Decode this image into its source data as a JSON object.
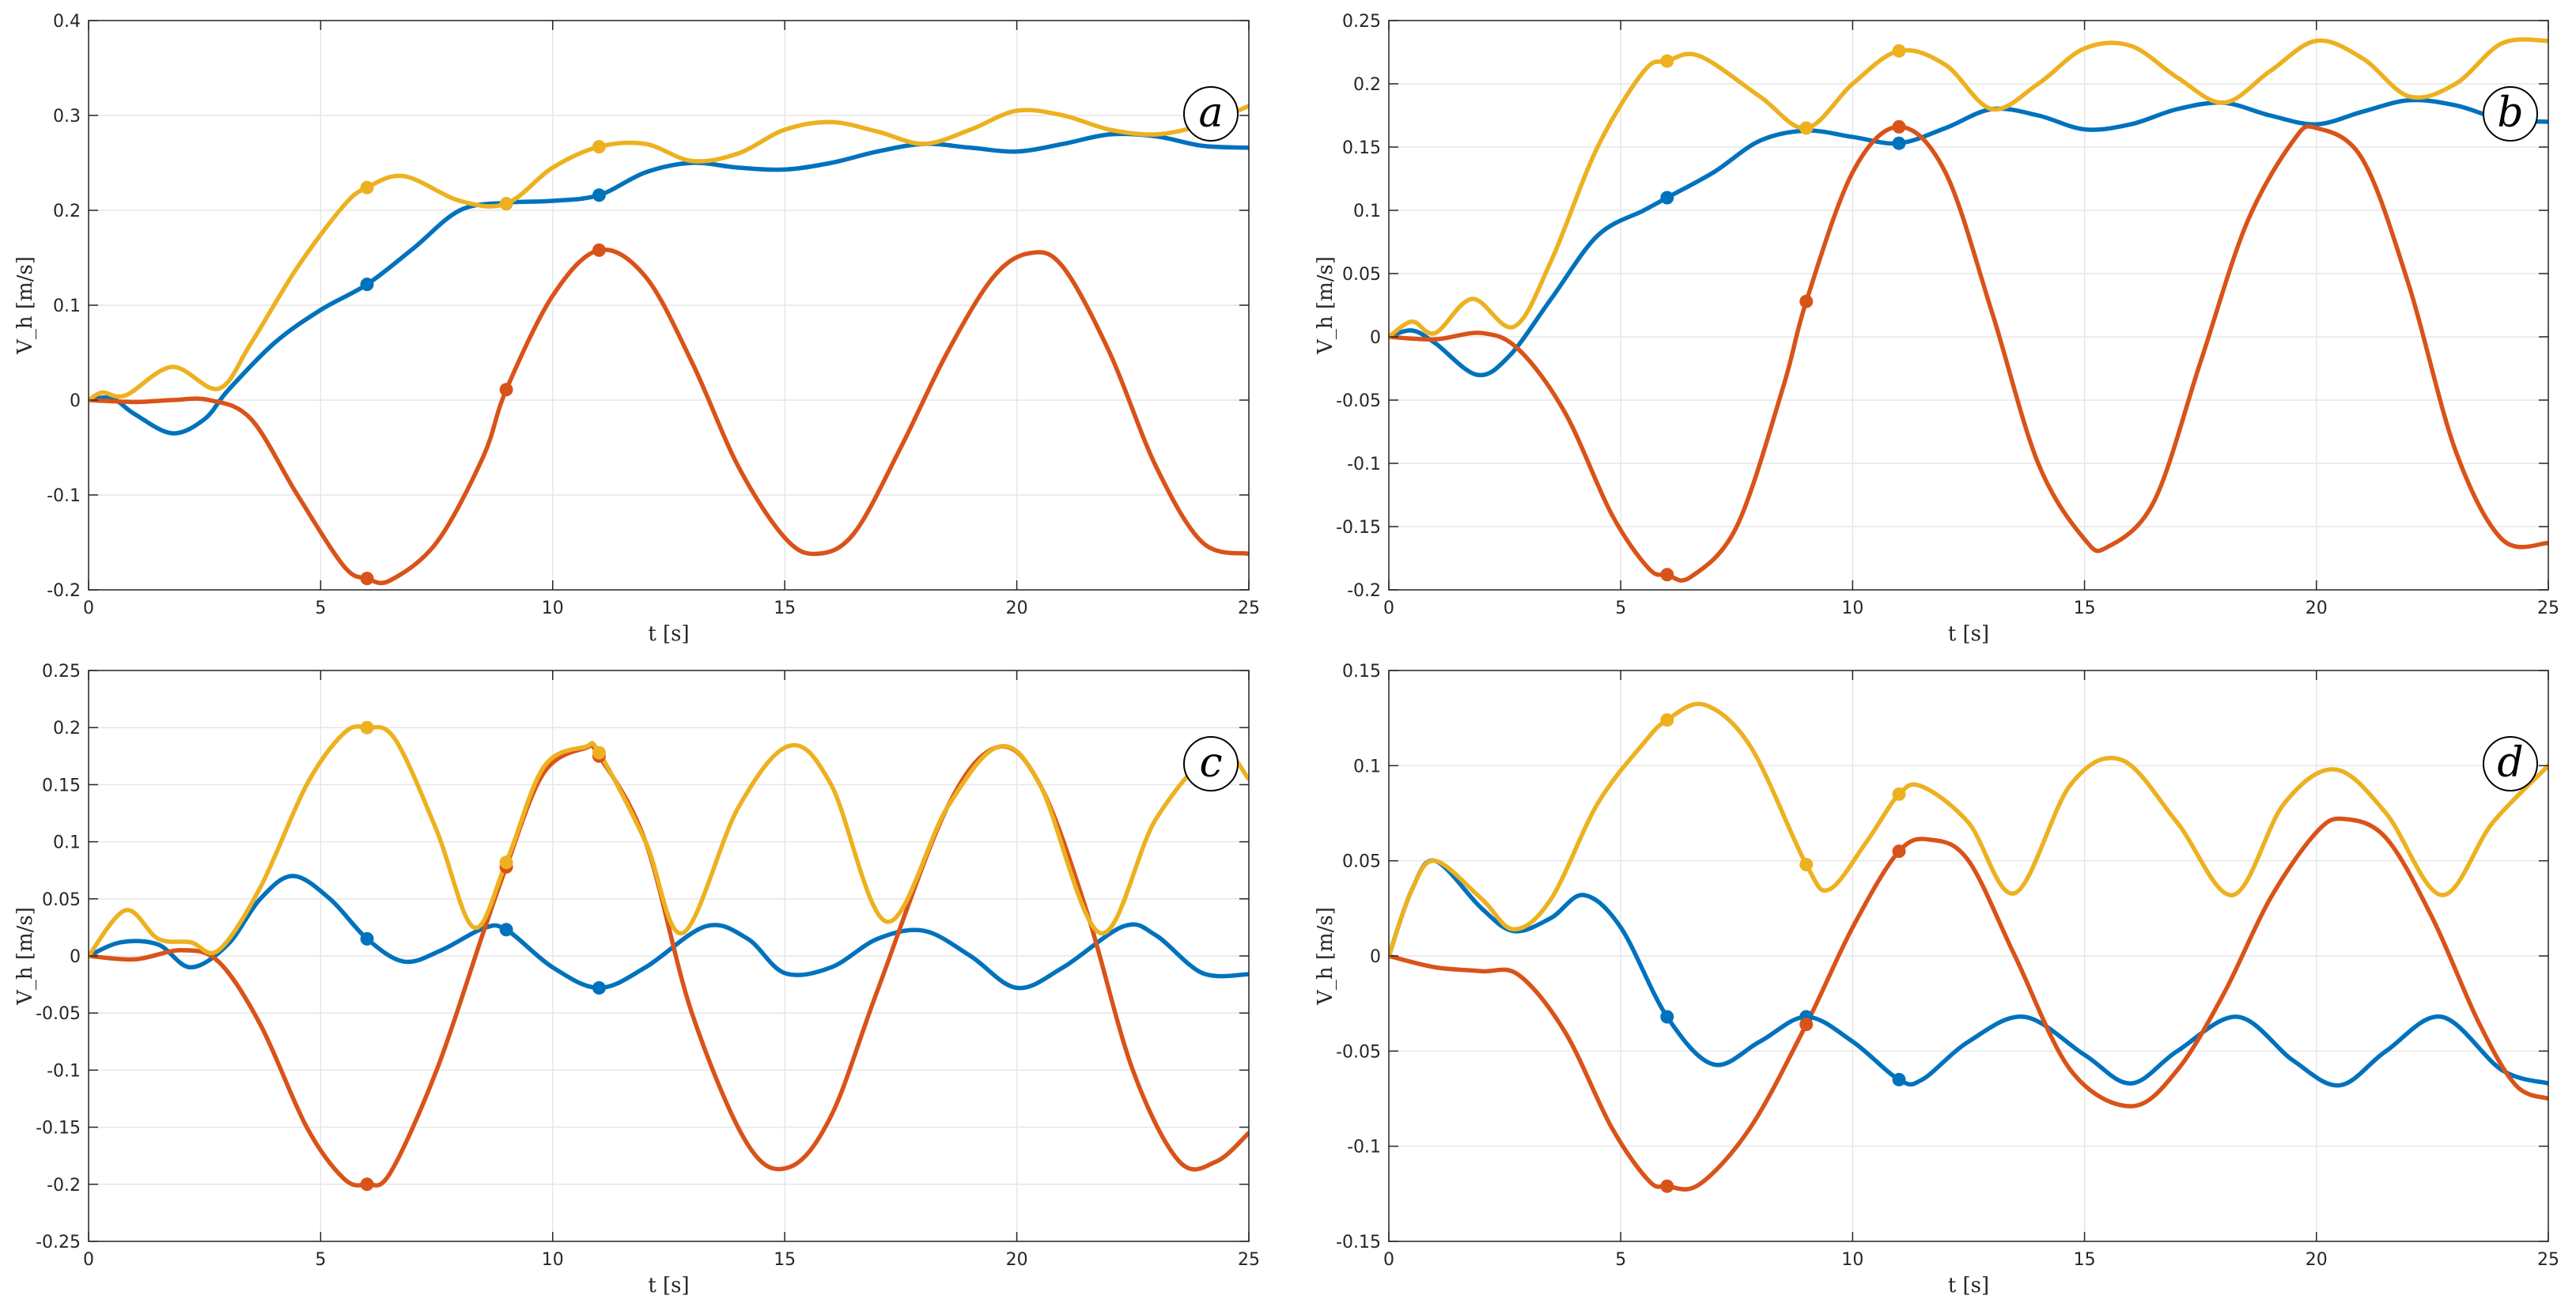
{
  "figure": {
    "colors": {
      "blue": "#0072BD",
      "orange": "#D95319",
      "yellow": "#EDB120",
      "grid": "#e6e6e6",
      "axis": "#262626"
    }
  },
  "chart_data": [
    {
      "type": "line",
      "panel": "a",
      "xlabel": "t [s]",
      "ylabel": "V_h [m/s]",
      "xlim": [
        0,
        25
      ],
      "ylim": [
        -0.2,
        0.4
      ],
      "xticks": [
        0,
        5,
        10,
        15,
        20,
        25
      ],
      "yticks": [
        -0.2,
        -0.1,
        0,
        0.1,
        0.2,
        0.3,
        0.4
      ],
      "grid": true,
      "series": [
        {
          "name": "blue",
          "color": "#0072BD",
          "x": [
            0,
            0.5,
            1,
            1.8,
            2.5,
            3,
            4,
            5,
            6,
            7,
            8,
            9,
            10,
            11,
            12,
            13,
            14,
            15,
            16,
            17,
            18,
            19,
            20,
            21,
            22,
            23,
            24,
            25
          ],
          "y": [
            0,
            0.002,
            -0.015,
            -0.035,
            -0.02,
            0.01,
            0.06,
            0.095,
            0.122,
            0.16,
            0.2,
            0.208,
            0.21,
            0.216,
            0.24,
            0.25,
            0.245,
            0.243,
            0.25,
            0.262,
            0.27,
            0.266,
            0.262,
            0.27,
            0.28,
            0.278,
            0.268,
            0.266
          ],
          "markers": [
            [
              6,
              0.122
            ],
            [
              11,
              0.216
            ]
          ]
        },
        {
          "name": "orange",
          "color": "#D95319",
          "x": [
            0,
            1,
            1.8,
            2.6,
            3.5,
            4.5,
            5.5,
            6,
            6.5,
            7.5,
            8.5,
            9,
            10,
            11,
            12,
            13,
            14,
            15,
            15.7,
            16.5,
            17.5,
            18.5,
            19.5,
            20.3,
            21,
            22,
            23,
            24,
            25
          ],
          "y": [
            0,
            -0.002,
            0,
            0,
            -0.02,
            -0.1,
            -0.175,
            -0.188,
            -0.19,
            -0.15,
            -0.06,
            0.011,
            0.11,
            0.158,
            0.13,
            0.04,
            -0.07,
            -0.145,
            -0.162,
            -0.14,
            -0.05,
            0.05,
            0.13,
            0.155,
            0.14,
            0.05,
            -0.07,
            -0.15,
            -0.162
          ],
          "markers": [
            [
              6,
              -0.188
            ],
            [
              9,
              0.011
            ],
            [
              11,
              0.158
            ]
          ]
        },
        {
          "name": "yellow",
          "color": "#EDB120",
          "x": [
            0,
            0.3,
            0.8,
            1.8,
            2.8,
            3.5,
            4.5,
            5.5,
            6,
            6.8,
            8,
            9,
            10,
            11,
            12,
            13,
            14,
            15,
            16,
            17,
            18,
            19,
            20,
            21,
            22,
            23,
            24,
            25
          ],
          "y": [
            0,
            0.008,
            0.005,
            0.035,
            0.012,
            0.06,
            0.14,
            0.205,
            0.224,
            0.236,
            0.21,
            0.207,
            0.245,
            0.267,
            0.27,
            0.252,
            0.26,
            0.285,
            0.293,
            0.283,
            0.27,
            0.285,
            0.305,
            0.3,
            0.285,
            0.28,
            0.29,
            0.31
          ],
          "markers": [
            [
              6,
              0.224
            ],
            [
              9,
              0.207
            ],
            [
              11,
              0.267
            ]
          ]
        }
      ]
    },
    {
      "type": "line",
      "panel": "b",
      "xlabel": "t [s]",
      "ylabel": "V_h [m/s]",
      "xlim": [
        0,
        25
      ],
      "ylim": [
        -0.2,
        0.25
      ],
      "xticks": [
        0,
        5,
        10,
        15,
        20,
        25
      ],
      "yticks": [
        -0.2,
        -0.15,
        -0.1,
        -0.05,
        0,
        0.05,
        0.1,
        0.15,
        0.2,
        0.25
      ],
      "grid": true,
      "series": [
        {
          "name": "blue",
          "color": "#0072BD",
          "x": [
            0,
            0.5,
            1,
            1.9,
            2.6,
            3.5,
            4.5,
            5.5,
            6,
            7,
            8,
            9,
            10,
            11,
            12,
            13,
            14,
            15,
            16,
            17,
            18,
            19,
            20,
            21,
            22,
            23,
            24,
            25
          ],
          "y": [
            0,
            0.005,
            -0.005,
            -0.03,
            -0.015,
            0.03,
            0.08,
            0.1,
            0.11,
            0.13,
            0.155,
            0.163,
            0.158,
            0.153,
            0.165,
            0.18,
            0.175,
            0.164,
            0.168,
            0.18,
            0.185,
            0.175,
            0.168,
            0.178,
            0.187,
            0.183,
            0.172,
            0.17
          ],
          "markers": [
            [
              6,
              0.11
            ],
            [
              11,
              0.153
            ]
          ]
        },
        {
          "name": "orange",
          "color": "#D95319",
          "x": [
            0,
            1,
            2,
            2.8,
            3.8,
            4.8,
            5.6,
            6,
            6.5,
            7.5,
            8.5,
            9,
            10,
            11,
            12,
            13,
            14,
            15,
            15.5,
            16.5,
            17.5,
            18.5,
            19.5,
            20,
            21,
            22,
            23,
            24,
            25
          ],
          "y": [
            0,
            -0.002,
            0.003,
            -0.01,
            -0.06,
            -0.14,
            -0.183,
            -0.188,
            -0.19,
            -0.15,
            -0.04,
            0.028,
            0.13,
            0.166,
            0.13,
            0.02,
            -0.1,
            -0.16,
            -0.166,
            -0.13,
            -0.02,
            0.09,
            0.155,
            0.165,
            0.14,
            0.04,
            -0.09,
            -0.16,
            -0.163
          ],
          "markers": [
            [
              6,
              -0.188
            ],
            [
              9,
              0.028
            ],
            [
              11,
              0.166
            ]
          ]
        },
        {
          "name": "yellow",
          "color": "#EDB120",
          "x": [
            0,
            0.5,
            1,
            1.8,
            2.7,
            3.5,
            4.5,
            5.5,
            6,
            6.7,
            8,
            9,
            10,
            11,
            12,
            13,
            14,
            15,
            16,
            17,
            18,
            19,
            20,
            21,
            22,
            23,
            24,
            25
          ],
          "y": [
            0,
            0.012,
            0.003,
            0.03,
            0.008,
            0.06,
            0.15,
            0.21,
            0.218,
            0.222,
            0.19,
            0.165,
            0.2,
            0.226,
            0.215,
            0.18,
            0.2,
            0.228,
            0.23,
            0.205,
            0.185,
            0.21,
            0.234,
            0.22,
            0.19,
            0.2,
            0.232,
            0.234
          ],
          "markers": [
            [
              6,
              0.218
            ],
            [
              9,
              0.165
            ],
            [
              11,
              0.226
            ]
          ]
        }
      ]
    },
    {
      "type": "line",
      "panel": "c",
      "xlabel": "t [s]",
      "ylabel": "V_h [m/s]",
      "xlim": [
        0,
        25
      ],
      "ylim": [
        -0.25,
        0.25
      ],
      "xticks": [
        0,
        5,
        10,
        15,
        20,
        25
      ],
      "yticks": [
        -0.25,
        -0.2,
        -0.15,
        -0.1,
        -0.05,
        0,
        0.05,
        0.1,
        0.15,
        0.2,
        0.25
      ],
      "grid": true,
      "series": [
        {
          "name": "blue",
          "color": "#0072BD",
          "x": [
            0,
            0.7,
            1.5,
            2.2,
            3,
            3.7,
            4.4,
            5.2,
            6,
            6.8,
            7.6,
            8.5,
            9,
            10,
            11,
            12,
            13.3,
            14.2,
            15,
            16,
            17,
            18,
            19,
            20,
            21,
            22.3,
            23,
            24,
            25
          ],
          "y": [
            0,
            0.012,
            0.01,
            -0.01,
            0.01,
            0.05,
            0.07,
            0.05,
            0.015,
            -0.005,
            0.005,
            0.024,
            0.023,
            -0.01,
            -0.028,
            -0.01,
            0.026,
            0.015,
            -0.015,
            -0.01,
            0.015,
            0.022,
            0.0,
            -0.028,
            -0.01,
            0.026,
            0.018,
            -0.015,
            -0.016
          ],
          "markers": [
            [
              6,
              0.015
            ],
            [
              9,
              0.023
            ],
            [
              11,
              -0.028
            ]
          ]
        },
        {
          "name": "orange",
          "color": "#D95319",
          "x": [
            0,
            1,
            2,
            2.8,
            3.7,
            4.7,
            5.5,
            6,
            6.5,
            7.5,
            8.5,
            9,
            9.8,
            10.7,
            11,
            12,
            13,
            14.2,
            15.1,
            16,
            17,
            18.5,
            19.6,
            20.5,
            21.5,
            22.5,
            23.5,
            24.3,
            25
          ],
          "y": [
            0,
            -0.003,
            0.005,
            -0.005,
            -0.06,
            -0.15,
            -0.195,
            -0.2,
            -0.19,
            -0.1,
            0.02,
            0.078,
            0.16,
            0.182,
            0.175,
            0.1,
            -0.05,
            -0.165,
            -0.185,
            -0.14,
            -0.03,
            0.13,
            0.183,
            0.15,
            0.04,
            -0.1,
            -0.18,
            -0.18,
            -0.155
          ],
          "markers": [
            [
              6,
              -0.2
            ],
            [
              9,
              0.078
            ],
            [
              11,
              0.175
            ]
          ]
        },
        {
          "name": "yellow",
          "color": "#EDB120",
          "x": [
            0,
            0.8,
            1.5,
            2.2,
            2.8,
            3.7,
            4.7,
            5.5,
            6,
            6.6,
            7.5,
            8.3,
            9,
            9.8,
            10.7,
            11,
            12,
            12.8,
            14,
            15.1,
            16,
            17.2,
            18.5,
            19.6,
            20.5,
            21.8,
            23,
            24.3,
            25
          ],
          "y": [
            0,
            0.04,
            0.015,
            0.012,
            0.005,
            0.06,
            0.15,
            0.195,
            0.2,
            0.19,
            0.11,
            0.025,
            0.082,
            0.165,
            0.183,
            0.178,
            0.1,
            0.02,
            0.13,
            0.184,
            0.15,
            0.03,
            0.13,
            0.183,
            0.15,
            0.02,
            0.12,
            0.18,
            0.155
          ],
          "markers": [
            [
              6,
              0.2
            ],
            [
              9,
              0.082
            ],
            [
              11,
              0.178
            ]
          ]
        }
      ]
    },
    {
      "type": "line",
      "panel": "d",
      "xlabel": "t [s]",
      "ylabel": "V_h [m/s]",
      "xlim": [
        0,
        25
      ],
      "ylim": [
        -0.15,
        0.15
      ],
      "xticks": [
        0,
        5,
        10,
        15,
        20,
        25
      ],
      "yticks": [
        -0.15,
        -0.1,
        -0.05,
        0,
        0.05,
        0.1,
        0.15
      ],
      "grid": true,
      "series": [
        {
          "name": "blue",
          "color": "#0072BD",
          "x": [
            0,
            0.5,
            1,
            2,
            2.7,
            3.5,
            4.2,
            5,
            6,
            7,
            8,
            9,
            10,
            11,
            11.5,
            12.5,
            13.7,
            15,
            16,
            17,
            18.3,
            19.5,
            20.5,
            21.5,
            22.7,
            24,
            25
          ],
          "y": [
            0,
            0.035,
            0.05,
            0.025,
            0.013,
            0.02,
            0.032,
            0.015,
            -0.032,
            -0.057,
            -0.045,
            -0.032,
            -0.045,
            -0.065,
            -0.065,
            -0.045,
            -0.032,
            -0.052,
            -0.067,
            -0.05,
            -0.032,
            -0.055,
            -0.068,
            -0.05,
            -0.032,
            -0.06,
            -0.067
          ],
          "markers": [
            [
              6,
              -0.032
            ],
            [
              9,
              -0.032
            ],
            [
              11,
              -0.065
            ]
          ]
        },
        {
          "name": "orange",
          "color": "#D95319",
          "x": [
            0,
            1,
            2,
            2.8,
            3.8,
            4.8,
            5.6,
            6,
            6.7,
            7.8,
            9,
            10,
            11,
            11.7,
            12.5,
            13.5,
            14.7,
            16,
            17,
            18,
            19,
            20,
            20.6,
            21.5,
            22.5,
            23.5,
            24.3,
            25
          ],
          "y": [
            0,
            -0.006,
            -0.008,
            -0.01,
            -0.04,
            -0.09,
            -0.118,
            -0.121,
            -0.12,
            -0.09,
            -0.036,
            0.015,
            0.055,
            0.061,
            0.05,
            0.0,
            -0.06,
            -0.079,
            -0.06,
            -0.02,
            0.03,
            0.065,
            0.072,
            0.062,
            0.02,
            -0.035,
            -0.068,
            -0.075
          ],
          "markers": [
            [
              6,
              -0.121
            ],
            [
              9,
              -0.036
            ],
            [
              11,
              0.055
            ]
          ]
        },
        {
          "name": "yellow",
          "color": "#EDB120",
          "x": [
            0,
            0.5,
            1,
            2,
            2.7,
            3.5,
            4.5,
            5.5,
            6,
            6.8,
            7.8,
            9,
            9.5,
            10.3,
            11,
            11.5,
            12.5,
            13.5,
            14.7,
            15.8,
            17,
            18.2,
            19.3,
            20.4,
            21.5,
            22.7,
            23.8,
            25
          ],
          "y": [
            0,
            0.035,
            0.05,
            0.03,
            0.014,
            0.03,
            0.08,
            0.112,
            0.124,
            0.132,
            0.11,
            0.048,
            0.035,
            0.06,
            0.085,
            0.089,
            0.07,
            0.033,
            0.09,
            0.103,
            0.07,
            0.032,
            0.08,
            0.098,
            0.075,
            0.032,
            0.07,
            0.1
          ],
          "markers": [
            [
              6,
              0.124
            ],
            [
              9,
              0.048
            ],
            [
              11,
              0.085
            ]
          ]
        }
      ]
    }
  ],
  "panels": {
    "a": {
      "tag": "a",
      "ylabel": "V_h [m/s]",
      "xlabel": "t [s]"
    },
    "b": {
      "tag": "b",
      "ylabel": "V_h [m/s]",
      "xlabel": "t [s]"
    },
    "c": {
      "tag": "c",
      "ylabel": "V_h [m/s]",
      "xlabel": "t [s]"
    },
    "d": {
      "tag": "d",
      "ylabel": "V_h [m/s]",
      "xlabel": "t [s]"
    }
  }
}
